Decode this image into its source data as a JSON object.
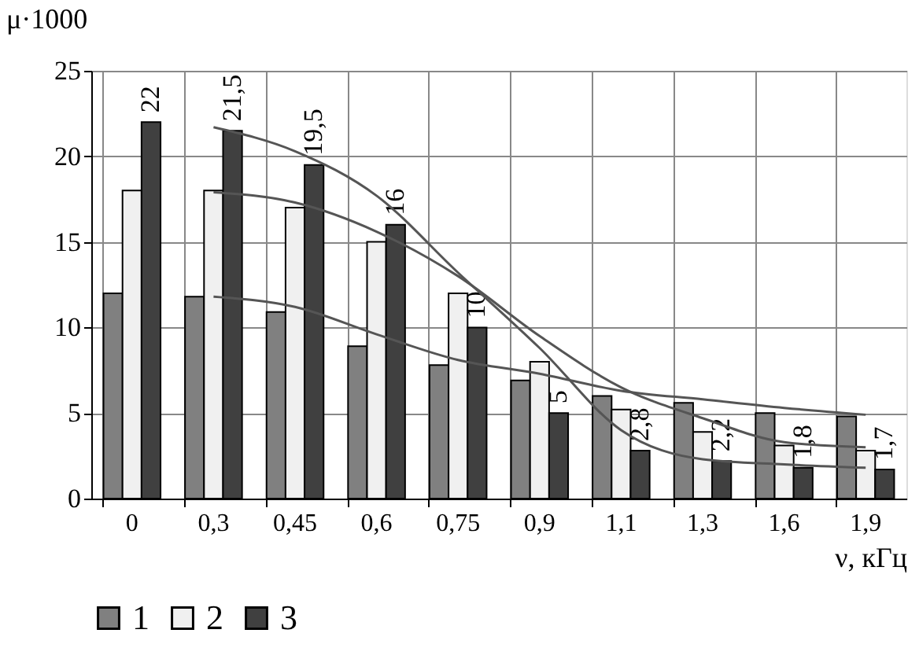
{
  "chart_data": {
    "type": "bar",
    "xlabel": "ν, кГц",
    "ylabel": "μ·1000",
    "categories": [
      "0",
      "0,3",
      "0,45",
      "0,6",
      "0,75",
      "0,9",
      "1,1",
      "1,3",
      "1,6",
      "1,9"
    ],
    "ylim": [
      0,
      25
    ],
    "yticks": [
      0,
      5,
      10,
      15,
      20,
      25
    ],
    "grid": true,
    "legend": "bottom",
    "series": [
      {
        "name": "1",
        "color": "#808080",
        "values": [
          12,
          11.8,
          10.9,
          8.9,
          7.8,
          6.9,
          6.0,
          5.6,
          5.0,
          4.8
        ]
      },
      {
        "name": "2",
        "color": "#f0f0f0",
        "values": [
          18,
          18,
          17,
          15,
          12,
          8,
          5.2,
          3.9,
          3.1,
          2.8
        ]
      },
      {
        "name": "3",
        "color": "#404040",
        "values": [
          22,
          21.5,
          19.5,
          16,
          10,
          5,
          2.8,
          2.2,
          1.8,
          1.7
        ],
        "value_labels": [
          "22",
          "21,5",
          "19,5",
          "16",
          "10",
          "5",
          "2,8",
          "2,2",
          "1,8",
          "1,7"
        ]
      },
      {
        "type": "line",
        "color": "#555555",
        "x": [
          "0,3",
          "0,45",
          "0,6",
          "0,75",
          "0,9",
          "1,1",
          "1,3",
          "1,6",
          "1,9"
        ],
        "values": [
          11.8,
          11.2,
          9.6,
          8.1,
          7.3,
          6.3,
          5.8,
          5.3,
          4.9
        ]
      },
      {
        "type": "line",
        "color": "#555555",
        "x": [
          "0,3",
          "0,45",
          "0,6",
          "0,75",
          "0,9",
          "1,1",
          "1,3",
          "1,6",
          "1,9"
        ],
        "values": [
          17.9,
          17.3,
          15.6,
          13,
          9.5,
          6.5,
          4.7,
          3.3,
          3.0
        ]
      },
      {
        "type": "line",
        "color": "#555555",
        "x": [
          "0,3",
          "0,45",
          "0,6",
          "0,75",
          "0,9",
          "1,1",
          "1,3",
          "1,6",
          "1,9"
        ],
        "values": [
          21.7,
          20.3,
          17.7,
          13.2,
          8.8,
          4.0,
          2.3,
          2.0,
          1.8
        ]
      }
    ]
  }
}
